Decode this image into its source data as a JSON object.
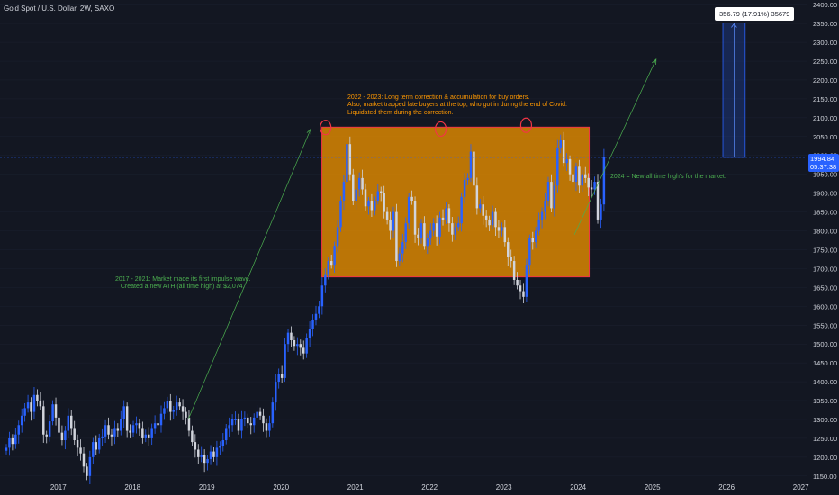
{
  "symbol_label": "Gold Spot / U.S. Dollar, 2W, SAXO",
  "colors": {
    "background": "#131722",
    "candle_up": "#2962ff",
    "candle_down": "#d1d4dc",
    "box_fill": "#e08a00",
    "box_border": "#f23645",
    "arrow": "#4caf50",
    "price_line": "#2962ff"
  },
  "annotations": {
    "correction": "2022 - 2023: Long term correction & accumulation for buy orders.\nAlso, market trapped late buyers at the top, who got in during the end of Covid.\nLiquidated them during the correction.",
    "impulse": "2017 - 2021: Market made its first impulse wave.\n   Created a new ATH (all time high) at $2,074.",
    "ath_2024": "2024 = New all time high's for the market."
  },
  "measure_label": "356.79 (17.91%) 35679",
  "last_price": "1994.84",
  "countdown": "05:37:38",
  "chart_data": {
    "type": "candlestick",
    "title": "Gold Spot / U.S. Dollar, 2W, SAXO",
    "x_axis": {
      "ticks": [
        "2017",
        "2018",
        "2019",
        "2020",
        "2021",
        "2022",
        "2023",
        "2024",
        "2025",
        "2026",
        "2027"
      ]
    },
    "y_axis": {
      "ticks": [
        "1150.00",
        "1200.00",
        "1250.00",
        "1300.00",
        "1350.00",
        "1400.00",
        "1450.00",
        "1500.00",
        "1550.00",
        "1600.00",
        "1650.00",
        "1700.00",
        "1750.00",
        "1800.00",
        "1850.00",
        "1900.00",
        "1950.00",
        "2000.00",
        "2050.00",
        "2100.00",
        "2150.00",
        "2200.00",
        "2250.00",
        "2300.00",
        "2350.00",
        "2400.00"
      ],
      "range": [
        1140,
        2410
      ]
    },
    "series": [
      {
        "type": "close",
        "x_start": 2016.3,
        "step_years": 0.0417,
        "closes": [
          1225,
          1250,
          1235,
          1260,
          1285,
          1310,
          1330,
          1345,
          1320,
          1365,
          1350,
          1335,
          1260,
          1255,
          1295,
          1340,
          1305,
          1265,
          1245,
          1270,
          1310,
          1275,
          1245,
          1225,
          1210,
          1175,
          1150,
          1200,
          1240,
          1220,
          1250,
          1255,
          1285,
          1260,
          1255,
          1275,
          1270,
          1300,
          1335,
          1270,
          1265,
          1285,
          1290,
          1275,
          1250,
          1260,
          1250,
          1275,
          1290,
          1285,
          1315,
          1330,
          1350,
          1320,
          1325,
          1345,
          1335,
          1320,
          1305,
          1270,
          1240,
          1220,
          1200,
          1205,
          1185,
          1195,
          1215,
          1200,
          1225,
          1230,
          1245,
          1275,
          1285,
          1300,
          1300,
          1270,
          1300,
          1305,
          1290,
          1285,
          1305,
          1320,
          1310,
          1290,
          1270,
          1290,
          1345,
          1400,
          1420,
          1410,
          1500,
          1530,
          1510,
          1495,
          1500,
          1490,
          1475,
          1515,
          1540,
          1565,
          1580,
          1600,
          1655,
          1685,
          1720,
          1710,
          1760,
          1810,
          1880,
          1930,
          2030,
          1950,
          1880,
          1910,
          1940,
          1910,
          1865,
          1880,
          1855,
          1880,
          1905,
          1900,
          1850,
          1830,
          1800,
          1850,
          1720,
          1740,
          1770,
          1820,
          1890,
          1880,
          1790,
          1780,
          1820,
          1760,
          1780,
          1800,
          1820,
          1785,
          1835,
          1830,
          1860,
          1820,
          1790,
          1810,
          1820,
          1890,
          1935,
          1940,
          2010,
          1920,
          1860,
          1870,
          1840,
          1830,
          1815,
          1850,
          1810,
          1800,
          1810,
          1770,
          1730,
          1720,
          1670,
          1655,
          1640,
          1625,
          1710,
          1780,
          1770,
          1800,
          1830,
          1850,
          1880,
          1930,
          1860,
          1920,
          2020,
          2040,
          1980,
          1990,
          1950,
          1930,
          1970,
          1920,
          1950,
          1940,
          1915,
          1910,
          1930,
          1830,
          1870,
          1995
        ]
      }
    ],
    "rectangle": {
      "x": [
        2020.55,
        2024.15
      ],
      "y": [
        1678,
        2075
      ]
    },
    "circles_at_highs": [
      {
        "x": 2020.6,
        "y": 2074
      },
      {
        "x": 2022.15,
        "y": 2070
      },
      {
        "x": 2023.3,
        "y": 2080
      }
    ],
    "arrows": [
      {
        "from": [
          2018.75,
          1300
        ],
        "to": [
          2020.4,
          2070
        ]
      },
      {
        "from": [
          2023.95,
          1790
        ],
        "to": [
          2025.05,
          2255
        ]
      }
    ],
    "measurement": {
      "x": [
        2025.95,
        2026.25
      ],
      "y": [
        1994.84,
        2351.63
      ],
      "change": 356.79,
      "percent": 17.91
    },
    "current_price": 1994.84
  }
}
